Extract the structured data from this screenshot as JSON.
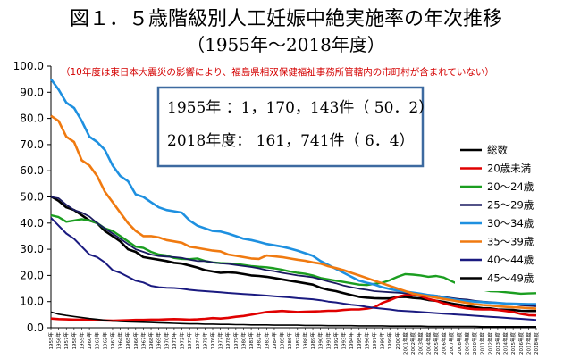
{
  "title": "図１．５歳階級別人工妊娠中絶実施率の年次推移",
  "subtitle": "（1955年～2018年度）",
  "note": "（10年度は東日本大震災の影響により、福島県相双保健福祉事務所管轄内の市町村が含まれていない）",
  "infobox": {
    "line1": "1955年 ：1，170，143件（ 50．2）",
    "line2": "2018年度： 161，741件（ 6．4）"
  },
  "chart_data": {
    "type": "line",
    "title": "図１．５歳階級別人工妊娠中絶実施率の年次推移",
    "ylim": [
      0,
      100
    ],
    "yticks": [
      "0.0",
      "10.0",
      "20.0",
      "30.0",
      "40.0",
      "50.0",
      "60.0",
      "70.0",
      "80.0",
      "90.0",
      "100.0"
    ],
    "grid": false,
    "legend_position": "right",
    "x": [
      "1955年",
      "1956年",
      "1957年",
      "1958年",
      "1959年",
      "1960年",
      "1961年",
      "1962年",
      "1963年",
      "1964年",
      "1965年",
      "1966年",
      "1967年",
      "1968年",
      "1969年",
      "1970年",
      "1971年",
      "1972年",
      "1973年",
      "1974年",
      "1975年",
      "1976年",
      "1977年",
      "1978年",
      "1979年",
      "1980年",
      "1981年",
      "1982年",
      "1983年",
      "1984年",
      "1985年",
      "1986年",
      "1987年",
      "1988年",
      "1989年",
      "1990年",
      "1991年",
      "1992年",
      "1993年",
      "1994年",
      "1995年",
      "1996年",
      "1997年",
      "1998年",
      "1999年",
      "2000年",
      "2001年度",
      "2002年度",
      "2003年度",
      "2004年度",
      "2005年度",
      "2006年度",
      "2007年度",
      "2008年度",
      "2009年度",
      "2010年度",
      "2011年度",
      "2012年度",
      "2013年度",
      "2014年度",
      "2015年度",
      "2016年度",
      "2017年度",
      "2018年度"
    ],
    "series": [
      {
        "name": "総数",
        "color": "#000000",
        "width": 2.6,
        "values": [
          50.2,
          48.5,
          46,
          45,
          43,
          41,
          40,
          37,
          35,
          33,
          30,
          29,
          27,
          26.5,
          26,
          25.5,
          24.8,
          24.5,
          23.8,
          23,
          22,
          21.5,
          21,
          21.2,
          21,
          20.5,
          20,
          19.8,
          19.5,
          19,
          18.5,
          18,
          17.5,
          17,
          16.5,
          15.3,
          14.5,
          14,
          13.2,
          12.5,
          11.8,
          11.5,
          11.3,
          11.2,
          11.2,
          11.7,
          11.8,
          11.4,
          11.2,
          10.6,
          10.3,
          9.9,
          9.3,
          8.8,
          8.3,
          7.9,
          7.5,
          7.4,
          7,
          6.9,
          6.8,
          6.5,
          6.4,
          6.4
        ]
      },
      {
        "name": "20歳未満",
        "color": "#e00000",
        "width": 2.6,
        "values": [
          3.5,
          3.3,
          3.2,
          3.1,
          3.1,
          3,
          2.9,
          2.8,
          2.7,
          2.8,
          2.9,
          3,
          3,
          3.1,
          3.1,
          3.2,
          3.3,
          3.2,
          3.1,
          3.2,
          3.4,
          3.7,
          3.5,
          3.8,
          4.2,
          4.5,
          5,
          5.5,
          6,
          6.2,
          6.4,
          6.2,
          6,
          6.1,
          6.2,
          6.3,
          6.5,
          6.5,
          6.8,
          7,
          7,
          7.3,
          7.8,
          9.5,
          10.5,
          11.8,
          12.5,
          12.8,
          12.1,
          11,
          10.3,
          9.3,
          8.6,
          7.9,
          7.4,
          7.1,
          7,
          7,
          6.8,
          6.4,
          6,
          5.3,
          4.8,
          4.7
        ]
      },
      {
        "name": "20～24歳",
        "color": "#1b9e20",
        "width": 2.4,
        "values": [
          43,
          42.3,
          40.5,
          41,
          41.5,
          41,
          40,
          38,
          37,
          35,
          33,
          31,
          30.5,
          29,
          28,
          27.6,
          26.7,
          26.3,
          26.2,
          26.5,
          25.5,
          25,
          24.7,
          24.6,
          24.4,
          24,
          23.6,
          23.3,
          23.1,
          22.7,
          22.2,
          21.5,
          21,
          20.6,
          20,
          19,
          18.5,
          18,
          17.5,
          17,
          16.5,
          16.3,
          16.8,
          17.2,
          18.2,
          19.5,
          20.5,
          20.3,
          20,
          19.5,
          19.8,
          19.2,
          17.8,
          16.5,
          15.5,
          15,
          14.5,
          14,
          13.9,
          13.6,
          13.3,
          13,
          13.1,
          13.2
        ]
      },
      {
        "name": "25～29歳",
        "color": "#1a1a60",
        "width": 1.8,
        "values": [
          50,
          49.5,
          47,
          45,
          44,
          42.5,
          40,
          38,
          36,
          34,
          32,
          30,
          29,
          28,
          27.4,
          27.2,
          27,
          26.7,
          26,
          25.5,
          25.5,
          25,
          24.6,
          24.4,
          24,
          23.6,
          23.2,
          22.7,
          22,
          21.6,
          21,
          20.5,
          20,
          19.7,
          19.3,
          18.5,
          17.7,
          17,
          16.1,
          15.5,
          14.9,
          14.5,
          14,
          13.8,
          13.6,
          13.4,
          13.2,
          13,
          12.9,
          12.6,
          12.3,
          11.8,
          11.4,
          11,
          10.8,
          10.3,
          10,
          9.8,
          9.6,
          9.3,
          9,
          8.6,
          8.4,
          8.2
        ]
      },
      {
        "name": "30～34歳",
        "color": "#1e90e0",
        "width": 2.6,
        "values": [
          95,
          91,
          86,
          84,
          79,
          73,
          71,
          68,
          62,
          58,
          56,
          51,
          50,
          48,
          46,
          45,
          44.5,
          44,
          41,
          39,
          38,
          37,
          36.8,
          36,
          35,
          34,
          33.5,
          32.8,
          32,
          31.5,
          31,
          30.3,
          29.5,
          28.5,
          27.5,
          25.5,
          24,
          22.5,
          21,
          19.5,
          18,
          17.2,
          16.5,
          15.5,
          14.8,
          14.2,
          13.8,
          13.4,
          13,
          12.5,
          12.2,
          11.5,
          11,
          10.5,
          10.2,
          10,
          9.8,
          9.6,
          9.5,
          9.3,
          9.2,
          9.1,
          9,
          9
        ]
      },
      {
        "name": "35～39歳",
        "color": "#f07a10",
        "width": 2.6,
        "values": [
          81,
          79,
          73,
          71,
          64,
          62,
          58,
          52,
          48,
          44,
          40,
          37,
          35,
          35,
          34.5,
          33.5,
          33,
          32.5,
          31,
          30.5,
          30,
          29.5,
          29.2,
          28,
          27.5,
          27,
          26.5,
          26.3,
          27.6,
          27.3,
          27,
          26.5,
          26,
          25.6,
          25,
          24.5,
          23.5,
          22.8,
          22,
          21,
          20,
          19,
          18,
          17,
          16,
          15,
          14,
          13,
          12.5,
          12,
          11.5,
          11,
          10.5,
          10,
          9.5,
          9,
          8.7,
          8.5,
          8.2,
          8,
          7.8,
          7.7,
          7.5,
          7.3
        ]
      },
      {
        "name": "40～44歳",
        "color": "#1a1a80",
        "width": 2.0,
        "values": [
          42,
          39,
          36,
          34,
          31,
          28,
          27,
          25,
          22,
          21,
          19.5,
          18,
          17.3,
          16,
          15.5,
          15.3,
          15.2,
          14.9,
          14.5,
          14.2,
          14,
          13.8,
          13.6,
          13.3,
          13.1,
          12.9,
          12.7,
          12.5,
          12.3,
          12,
          11.8,
          11.6,
          11.3,
          11.1,
          10.9,
          10.5,
          10,
          9.7,
          9.2,
          8.8,
          8.5,
          8,
          7.6,
          7.3,
          7,
          6.6,
          6.4,
          6.2,
          6,
          5.8,
          5.6,
          5.4,
          5.2,
          5,
          4.8,
          4.6,
          4.4,
          4.2,
          4,
          3.8,
          3.6,
          3.4,
          3.2,
          3
        ]
      },
      {
        "name": "45～49歳",
        "color": "#000000",
        "width": 1.6,
        "values": [
          6,
          5.2,
          4.7,
          4.3,
          3.9,
          3.5,
          3.2,
          2.9,
          2.6,
          2.4,
          2.3,
          2.2,
          2.1,
          2,
          1.9,
          1.8,
          1.7,
          1.6,
          1.5,
          1.5,
          1.4,
          1.4,
          1.3,
          1.3,
          1.2,
          1.2,
          1.1,
          1.1,
          1.1,
          1,
          1,
          1,
          1,
          0.9,
          0.9,
          0.9,
          0.8,
          0.8,
          0.8,
          0.8,
          0.7,
          0.7,
          0.7,
          0.7,
          0.6,
          0.6,
          0.6,
          0.6,
          0.6,
          0.5,
          0.5,
          0.5,
          0.5,
          0.5,
          0.5,
          0.5,
          0.4,
          0.4,
          0.4,
          0.4,
          0.4,
          0.4,
          0.4,
          0.4
        ]
      }
    ]
  }
}
